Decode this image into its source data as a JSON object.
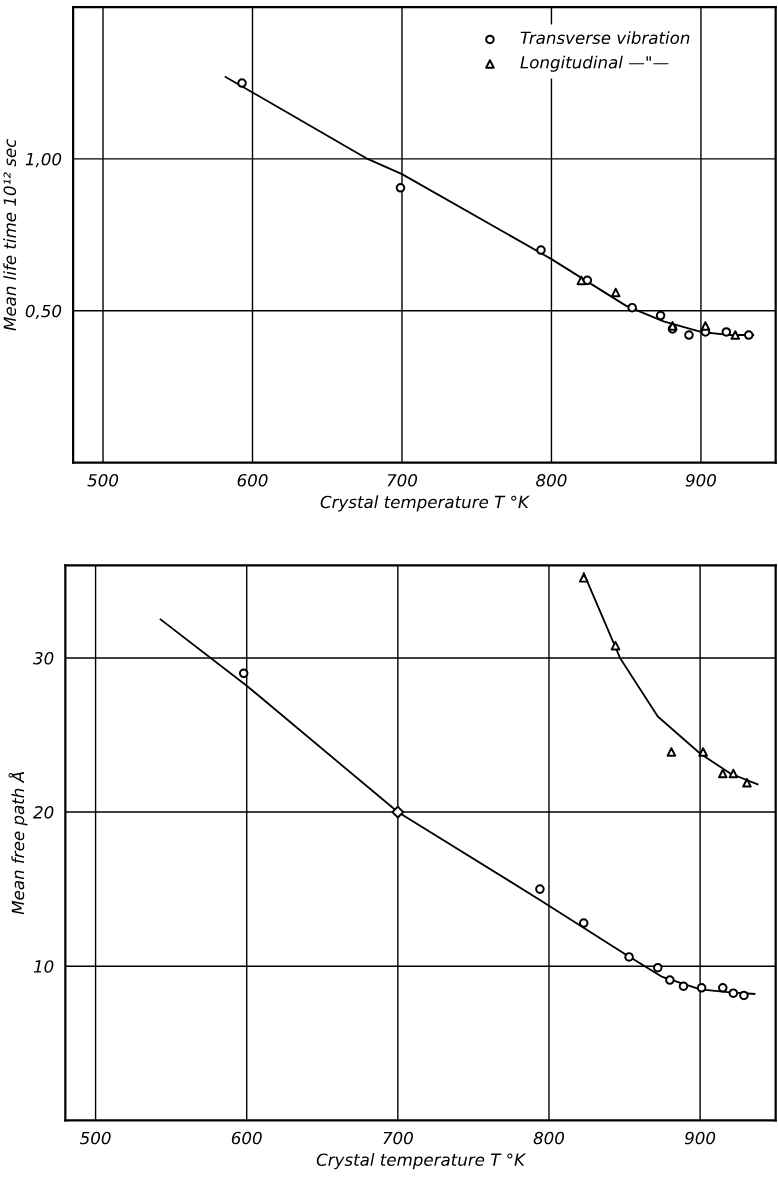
{
  "chart_data": [
    {
      "type": "scatter",
      "xlabel": "Crystal temperature T °K",
      "ylabel": "Mean life time 10¹² sec",
      "xlim": [
        480,
        950
      ],
      "xticks": [
        500,
        600,
        700,
        800,
        900
      ],
      "ylim": [
        0,
        1.5
      ],
      "yticks": [
        {
          "value": 0.5,
          "label": "0,50"
        },
        {
          "value": 1.0,
          "label": "1,00"
        }
      ],
      "grid": true,
      "legend": "top right",
      "series": [
        {
          "name": "Transverse vibration",
          "type": "scatter",
          "marker": "circle",
          "color": "#000000",
          "x": [
            593,
            699,
            793,
            824,
            854,
            873,
            881,
            892,
            903,
            917,
            932
          ],
          "values": [
            1.25,
            0.905,
            0.7,
            0.6,
            0.51,
            0.484,
            0.44,
            0.42,
            0.43,
            0.43,
            0.42
          ]
        },
        {
          "name": "Longitudinal —\"—",
          "type": "scatter",
          "marker": "triangle",
          "color": "#000000",
          "x": [
            820,
            843,
            881,
            903,
            923
          ],
          "values": [
            0.6,
            0.56,
            0.45,
            0.45,
            0.42
          ]
        },
        {
          "type": "line",
          "color": "#000000",
          "x": [
            582,
            677,
            700,
            800,
            850,
            875,
            900,
            920,
            935
          ],
          "values": [
            1.27,
            1.0,
            0.95,
            0.67,
            0.516,
            0.465,
            0.43,
            0.42,
            0.42
          ]
        }
      ]
    },
    {
      "type": "scatter",
      "xlabel": "Crystal temperature T °K",
      "ylabel": "Mean free path Å",
      "xlim": [
        480,
        950
      ],
      "xticks": [
        500,
        600,
        700,
        800,
        900
      ],
      "ylim": [
        0,
        36
      ],
      "yticks": [
        10,
        20,
        30
      ],
      "grid": true,
      "series": [
        {
          "type": "scatter",
          "marker": "circle",
          "color": "#000000",
          "x": [
            598,
            794,
            823,
            853,
            872,
            880,
            889,
            901,
            915,
            922,
            929
          ],
          "values": [
            29,
            15.0,
            12.8,
            10.6,
            9.9,
            9.1,
            8.7,
            8.6,
            8.6,
            8.25,
            8.1
          ]
        },
        {
          "type": "scatter",
          "marker": "diamond",
          "color": "#000000",
          "x": [
            700
          ],
          "values": [
            20.0
          ]
        },
        {
          "type": "scatter",
          "marker": "triangle",
          "color": "#000000",
          "x": [
            823,
            844,
            902,
            915,
            922,
            931
          ],
          "values": [
            35.2,
            30.8,
            23.9,
            22.5,
            22.5,
            21.9
          ]
        },
        {
          "marker": "triangle",
          "color": "#000000",
          "x": [
            881
          ],
          "values": [
            23.9
          ]
        },
        {
          "type": "line",
          "color": "#000000",
          "x": [
            823,
            847,
            872,
            900,
            920,
            938
          ],
          "values": [
            35.5,
            30,
            26.2,
            23.8,
            22.5,
            21.8
          ]
        },
        {
          "type": "line",
          "color": "#000000",
          "x": [
            543,
            600,
            700,
            794,
            850,
            875,
            900,
            920,
            936
          ],
          "values": [
            32.5,
            28.2,
            20.0,
            14.3,
            10.8,
            9.3,
            8.5,
            8.3,
            8.2
          ]
        }
      ]
    }
  ]
}
